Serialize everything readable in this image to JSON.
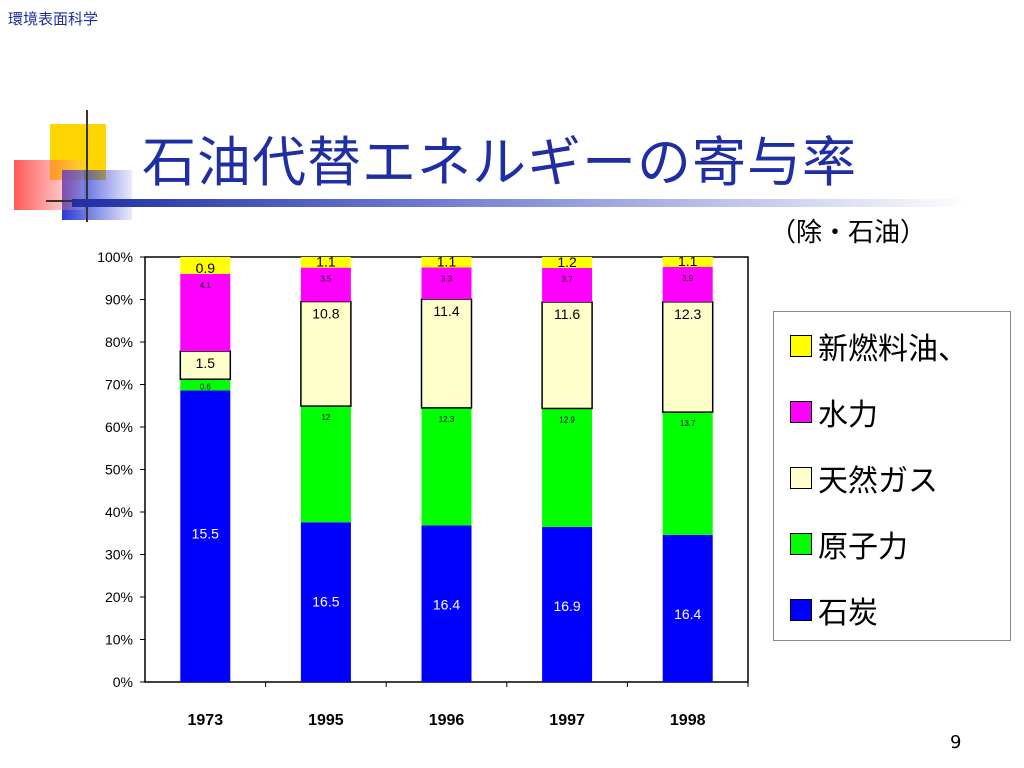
{
  "header": {
    "label": "環境表面科学"
  },
  "slide": {
    "title": "石油代替エネルギーの寄与率",
    "subtitle": "（除・石油）",
    "page_number": "9"
  },
  "colors": {
    "title": "#1f2fa3",
    "series": [
      "#0000ff",
      "#00ff00",
      "#ffffcc",
      "#ff00ff",
      "#ffff00"
    ]
  },
  "legend": {
    "items": [
      {
        "label": "新燃料油、",
        "color": "#ffff00"
      },
      {
        "label": "水力",
        "color": "#ff00ff"
      },
      {
        "label": "天然ガス",
        "color": "#ffffcc"
      },
      {
        "label": "原子力",
        "color": "#00ff00"
      },
      {
        "label": "石炭",
        "color": "#0000ff"
      }
    ]
  },
  "chart_data": {
    "type": "bar",
    "stacked": true,
    "percent": true,
    "categories": [
      "1973",
      "1995",
      "1996",
      "1997",
      "1998"
    ],
    "ylim": [
      0,
      100
    ],
    "yticks": [
      "0%",
      "10%",
      "20%",
      "30%",
      "40%",
      "50%",
      "60%",
      "70%",
      "80%",
      "90%",
      "100%"
    ],
    "series": [
      {
        "name": "石炭",
        "color": "#0000ff",
        "values": [
          15.5,
          16.5,
          16.4,
          16.9,
          16.4
        ],
        "labels": [
          "15.5",
          "16.5",
          "16.4",
          "16.9",
          "16.4"
        ]
      },
      {
        "name": "原子力",
        "color": "#00ff00",
        "values": [
          0.6,
          12,
          12.3,
          12.9,
          13.7
        ],
        "labels": [
          "0.6",
          "12",
          "12.3",
          "12.9",
          "13.7"
        ]
      },
      {
        "name": "天然ガス",
        "color": "#ffffcc",
        "values": [
          1.5,
          10.8,
          11.4,
          11.6,
          12.3
        ],
        "labels": [
          "1.5",
          "10.8",
          "11.4",
          "11.6",
          "12.3"
        ]
      },
      {
        "name": "水力",
        "color": "#ff00ff",
        "values": [
          4.1,
          3.5,
          3.3,
          3.7,
          3.9
        ],
        "labels": [
          "4.1",
          "3.5",
          "3.3",
          "3.7",
          "3.9"
        ]
      },
      {
        "name": "新燃料油、",
        "color": "#ffff00",
        "values": [
          0.9,
          1.1,
          1.1,
          1.2,
          1.1
        ],
        "labels": [
          "0.9",
          "1.1",
          "1.1",
          "1.2",
          "1.1"
        ]
      }
    ],
    "grid": false,
    "legend_position": "right"
  }
}
